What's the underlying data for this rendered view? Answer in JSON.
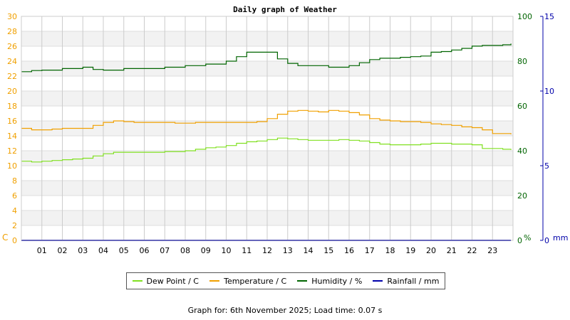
{
  "chart_data": {
    "type": "line",
    "title": "Daily graph of Weather",
    "x_ticks": [
      "01",
      "02",
      "03",
      "04",
      "05",
      "06",
      "07",
      "08",
      "09",
      "10",
      "11",
      "12",
      "13",
      "14",
      "15",
      "16",
      "17",
      "18",
      "19",
      "20",
      "21",
      "22",
      "23"
    ],
    "x_range": [
      0,
      24
    ],
    "axes": {
      "left": {
        "label": "C",
        "range": [
          0,
          30
        ],
        "ticks": [
          0,
          2,
          4,
          6,
          8,
          10,
          12,
          14,
          16,
          18,
          20,
          22,
          24,
          26,
          28,
          30
        ],
        "color": "#f0a000"
      },
      "humidity": {
        "label": "%",
        "range": [
          0,
          100
        ],
        "ticks": [
          0,
          20,
          40,
          60,
          80,
          100
        ],
        "color": "#006400"
      },
      "rain": {
        "label": "mm",
        "range": [
          0,
          15
        ],
        "ticks": [
          0,
          5,
          10,
          15
        ],
        "color": "#0000aa"
      }
    },
    "grid": true,
    "legend_position": "bottom",
    "series": [
      {
        "name": "Dew Point / C",
        "axis": "left",
        "color": "#80e020",
        "x": [
          0,
          0.5,
          1,
          1.5,
          2,
          2.5,
          3,
          3.5,
          4,
          4.5,
          5,
          5.5,
          6,
          6.5,
          7,
          7.5,
          8,
          8.5,
          9,
          9.5,
          10,
          10.5,
          11,
          11.5,
          12,
          12.5,
          13,
          13.5,
          14,
          14.5,
          15,
          15.5,
          16,
          16.5,
          17,
          17.5,
          18,
          18.5,
          19,
          19.5,
          20,
          20.5,
          21,
          21.5,
          22,
          22.5,
          23,
          23.5,
          23.9
        ],
        "y": [
          10.6,
          10.5,
          10.6,
          10.7,
          10.8,
          10.9,
          11.0,
          11.3,
          11.6,
          11.8,
          11.8,
          11.8,
          11.8,
          11.8,
          11.9,
          11.9,
          12.0,
          12.2,
          12.4,
          12.5,
          12.7,
          13.0,
          13.2,
          13.3,
          13.5,
          13.7,
          13.6,
          13.5,
          13.4,
          13.4,
          13.4,
          13.5,
          13.4,
          13.3,
          13.1,
          12.9,
          12.8,
          12.8,
          12.8,
          12.9,
          13.0,
          13.0,
          12.9,
          12.9,
          12.8,
          12.3,
          12.3,
          12.2,
          12.1
        ]
      },
      {
        "name": "Temperature / C",
        "axis": "left",
        "color": "#f0a000",
        "x": [
          0,
          0.5,
          1,
          1.5,
          2,
          2.5,
          3,
          3.5,
          4,
          4.5,
          5,
          5.5,
          6,
          6.5,
          7,
          7.5,
          8,
          8.5,
          9,
          9.5,
          10,
          10.5,
          11,
          11.5,
          12,
          12.5,
          13,
          13.5,
          14,
          14.5,
          15,
          15.5,
          16,
          16.5,
          17,
          17.5,
          18,
          18.5,
          19,
          19.5,
          20,
          20.5,
          21,
          21.5,
          22,
          22.5,
          23,
          23.5,
          23.9
        ],
        "y": [
          15.0,
          14.8,
          14.8,
          14.9,
          15.0,
          15.0,
          15.0,
          15.4,
          15.8,
          16.0,
          15.9,
          15.8,
          15.8,
          15.8,
          15.8,
          15.7,
          15.7,
          15.8,
          15.8,
          15.8,
          15.8,
          15.8,
          15.8,
          15.9,
          16.3,
          16.9,
          17.3,
          17.4,
          17.3,
          17.2,
          17.4,
          17.3,
          17.1,
          16.8,
          16.3,
          16.1,
          16.0,
          15.9,
          15.9,
          15.8,
          15.6,
          15.5,
          15.4,
          15.2,
          15.1,
          14.8,
          14.3,
          14.3,
          14.2
        ]
      },
      {
        "name": "Humidity / %",
        "axis": "humidity",
        "color": "#006400",
        "x": [
          0,
          0.5,
          1,
          1.5,
          2,
          2.5,
          3,
          3.5,
          4,
          4.5,
          5,
          5.5,
          6,
          6.5,
          7,
          7.5,
          8,
          8.5,
          9,
          9.5,
          10,
          10.5,
          11,
          11.5,
          12,
          12.5,
          13,
          13.5,
          14,
          14.5,
          15,
          15.5,
          16,
          16.5,
          17,
          17.5,
          18,
          18.5,
          19,
          19.5,
          20,
          20.5,
          21,
          21.5,
          22,
          22.5,
          23,
          23.5,
          23.9
        ],
        "y": [
          75.3,
          75.8,
          76.0,
          76.0,
          76.7,
          76.7,
          77.3,
          76.3,
          76.0,
          76.0,
          76.7,
          76.7,
          76.7,
          76.7,
          77.3,
          77.3,
          78.0,
          78.0,
          78.7,
          78.7,
          80.0,
          82.0,
          84.0,
          84.0,
          84.0,
          81.0,
          79.0,
          78.0,
          78.0,
          78.0,
          77.3,
          77.3,
          78.0,
          79.3,
          80.7,
          81.3,
          81.3,
          81.7,
          82.0,
          82.3,
          84.0,
          84.3,
          85.0,
          85.7,
          86.7,
          87.0,
          87.0,
          87.3,
          87.8
        ]
      },
      {
        "name": "Rainfall / mm",
        "axis": "rain",
        "color": "#0000aa",
        "x": [
          0,
          23.9
        ],
        "y": [
          0,
          0
        ]
      }
    ]
  },
  "footer": {
    "text": "Graph for: 6th November 2025; Load time: 0.07 s"
  }
}
